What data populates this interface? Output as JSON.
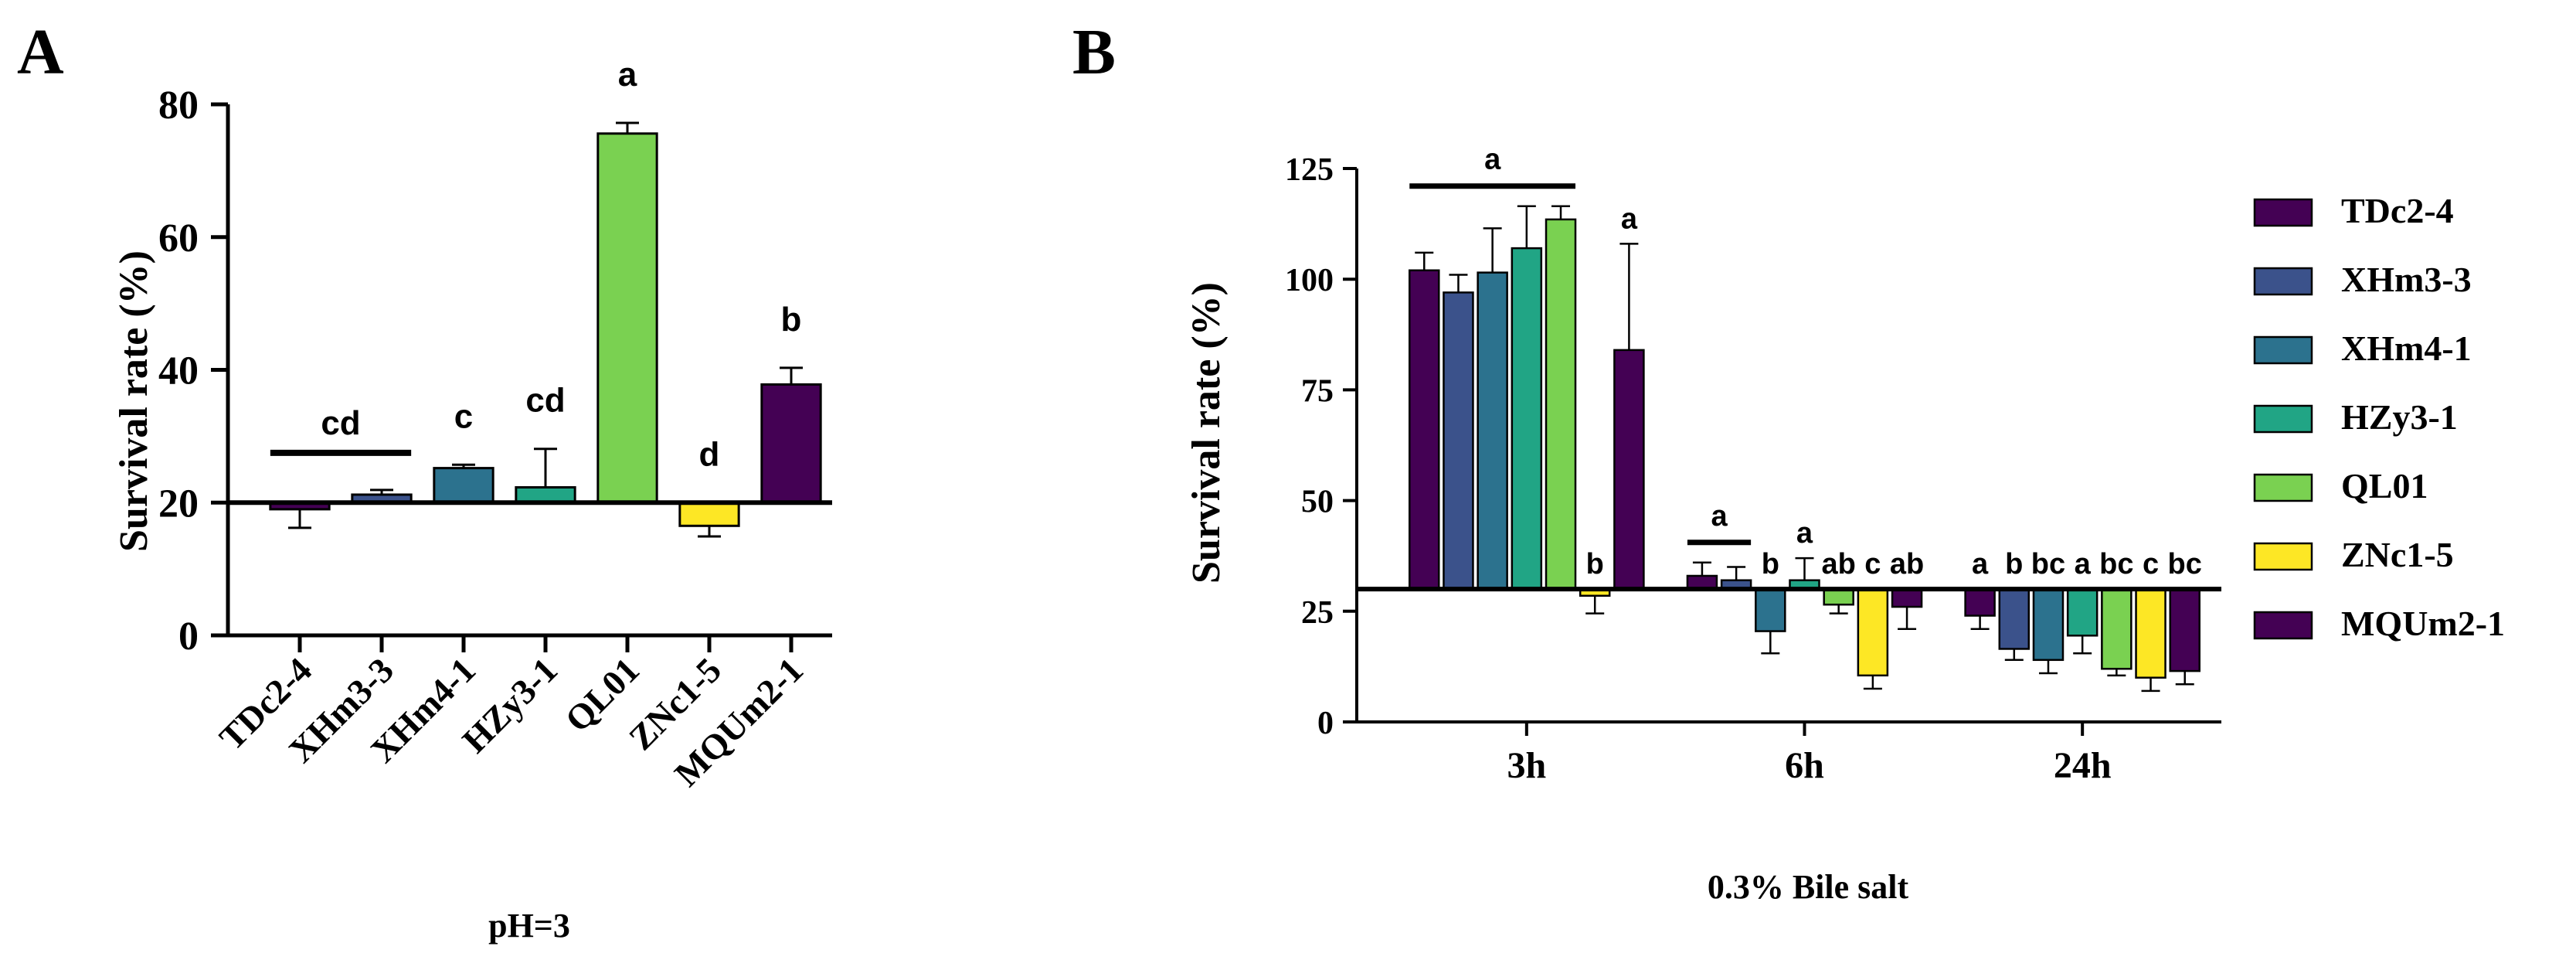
{
  "chart_data": [
    {
      "panel_label": "A",
      "type": "bar",
      "baseline": 20,
      "ylabel": "Survival rate (%)",
      "xlabel": "pH=3",
      "ylim": [
        0,
        80
      ],
      "yticks": [
        0,
        20,
        40,
        60,
        80
      ],
      "categories": [
        "TDc2-4",
        "XHm3-3",
        "XHm4-1",
        "HZy3-1",
        "QL01",
        "ZNc1-5",
        "MQUm2-1"
      ],
      "values": [
        19,
        21.2,
        25.2,
        22.3,
        75.6,
        16.5,
        37.8
      ],
      "errors": [
        2.8,
        0.7,
        0.5,
        5.8,
        1.6,
        1.6,
        2.5
      ],
      "colors": [
        "#440154",
        "#3b528b",
        "#2c728e",
        "#21a585",
        "#7ad151",
        "#fde725",
        "#440154"
      ],
      "annotations": [
        {
          "text": "cd",
          "target": [
            0,
            1
          ],
          "bar": true
        },
        {
          "text": "c",
          "target": [
            2
          ]
        },
        {
          "text": "cd",
          "target": [
            3
          ]
        },
        {
          "text": "a",
          "target": [
            4
          ]
        },
        {
          "text": "d",
          "target": [
            5
          ]
        },
        {
          "text": "b",
          "target": [
            6
          ]
        }
      ]
    },
    {
      "panel_label": "B",
      "type": "bar",
      "baseline": 30,
      "ylabel": "Survival rate (%)",
      "xlabel": "0.3% Bile salt",
      "ylim": [
        0,
        125
      ],
      "yticks": [
        0,
        25,
        50,
        75,
        100,
        125
      ],
      "categories": [
        "3h",
        "6h",
        "24h"
      ],
      "series": [
        {
          "name": "TDc2-4",
          "color": "#440154",
          "values": [
            102,
            33,
            24
          ],
          "errors": [
            4,
            3,
            3
          ]
        },
        {
          "name": "XHm3-3",
          "color": "#3b528b",
          "values": [
            97,
            32,
            16.5
          ],
          "errors": [
            4,
            3,
            2.5
          ]
        },
        {
          "name": "XHm4-1",
          "color": "#2c728e",
          "values": [
            101.5,
            20.5,
            14
          ],
          "errors": [
            10,
            5,
            3
          ]
        },
        {
          "name": "HZy3-1",
          "color": "#21a585",
          "values": [
            107,
            32,
            19.5
          ],
          "errors": [
            9.5,
            5,
            4
          ]
        },
        {
          "name": "QL01",
          "color": "#7ad151",
          "values": [
            113.5,
            26.5,
            12
          ],
          "errors": [
            3,
            2,
            1.5
          ]
        },
        {
          "name": "ZNc1-5",
          "color": "#fde725",
          "values": [
            28.5,
            10.5,
            10
          ],
          "errors": [
            4,
            3,
            3
          ]
        },
        {
          "name": "MQUm2-1",
          "color": "#440154",
          "values": [
            84,
            26,
            11.5
          ],
          "errors": [
            24,
            5,
            3
          ]
        }
      ],
      "annotations": [
        {
          "text": "a",
          "group": 0,
          "target": [
            0,
            4
          ],
          "bar": true
        },
        {
          "text": "b",
          "group": 0,
          "target": [
            5
          ]
        },
        {
          "text": "a",
          "group": 0,
          "target": [
            6
          ]
        },
        {
          "text": "a",
          "group": 1,
          "target": [
            0,
            1
          ],
          "bar": true
        },
        {
          "text": "b",
          "group": 1,
          "target": [
            2
          ]
        },
        {
          "text": "a",
          "group": 1,
          "target": [
            3
          ]
        },
        {
          "text": "ab",
          "group": 1,
          "target": [
            4
          ]
        },
        {
          "text": "c",
          "group": 1,
          "target": [
            5
          ]
        },
        {
          "text": "ab",
          "group": 1,
          "target": [
            6
          ]
        },
        {
          "text": "a",
          "group": 2,
          "target": [
            0
          ]
        },
        {
          "text": "b",
          "group": 2,
          "target": [
            1
          ]
        },
        {
          "text": "bc",
          "group": 2,
          "target": [
            2
          ]
        },
        {
          "text": "a",
          "group": 2,
          "target": [
            3
          ]
        },
        {
          "text": "bc",
          "group": 2,
          "target": [
            4
          ]
        },
        {
          "text": "c",
          "group": 2,
          "target": [
            5
          ]
        },
        {
          "text": "bc",
          "group": 2,
          "target": [
            6
          ]
        }
      ],
      "legend_position": "right"
    }
  ]
}
